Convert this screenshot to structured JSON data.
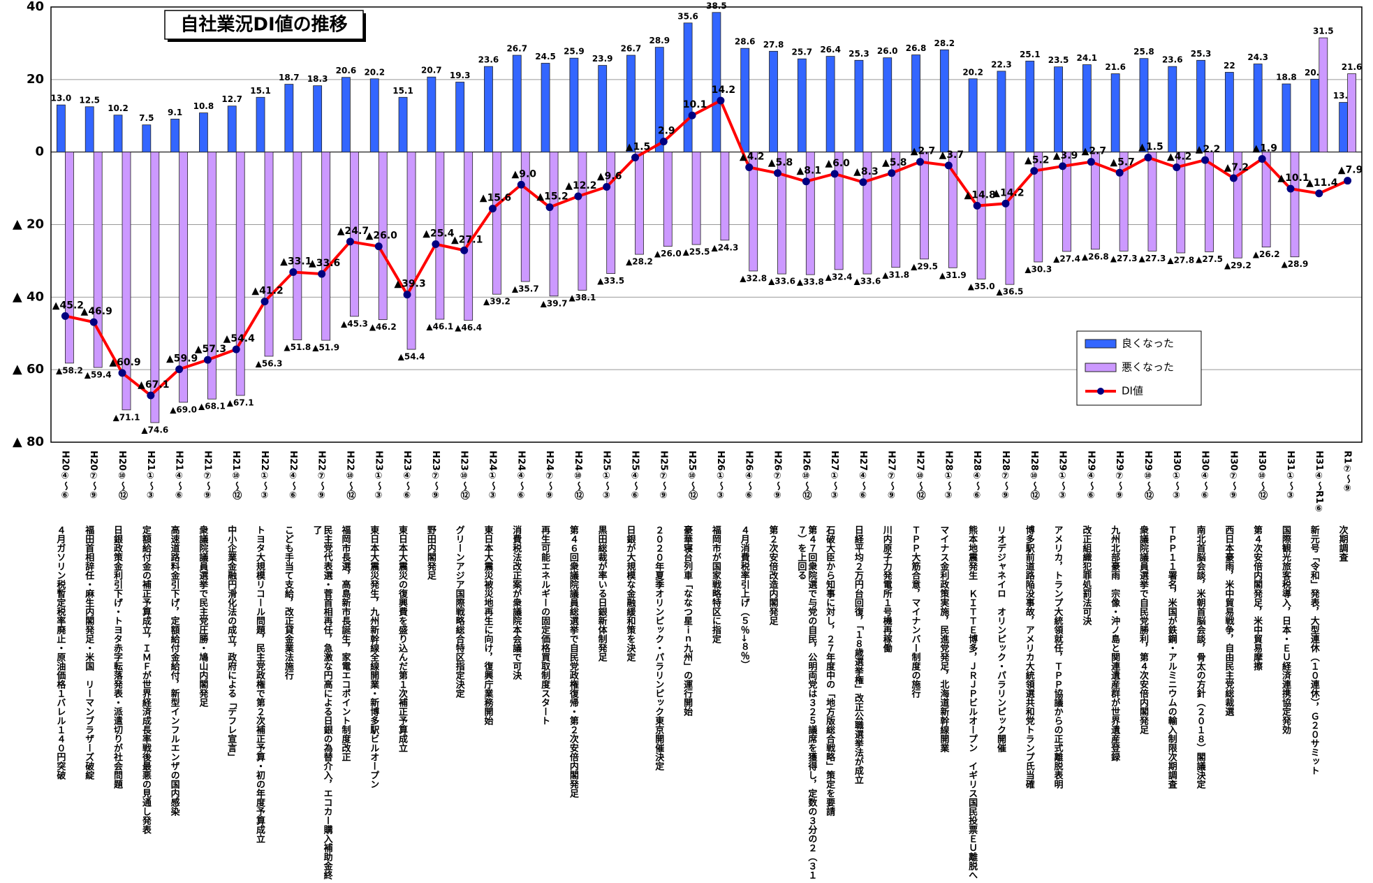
{
  "chart_data": {
    "type": "bar-line",
    "title": "自社業況DI値の推移",
    "categories": [
      "H20④～⑥",
      "H20⑦～⑨",
      "H20⑩～⑫",
      "H21①～③",
      "H21④～⑥",
      "H21⑦～⑨",
      "H21⑩～⑫",
      "H22①～③",
      "H22④～⑥",
      "H22⑦～⑨",
      "H22⑩～⑫",
      "H23①～③",
      "H23④～⑥",
      "H23⑦～⑨",
      "H23⑩～⑫",
      "H24①～③",
      "H24④～⑥",
      "H24⑦～⑨",
      "H24⑩～⑫",
      "H25①～③",
      "H25④～⑥",
      "H25⑦～⑨",
      "H25⑩～⑫",
      "H26①～③",
      "H26④～⑥",
      "H26⑦～⑨",
      "H26⑩～⑫",
      "H27①～③",
      "H27④～⑥",
      "H27⑦～⑨",
      "H27⑩～⑫",
      "H28①～③",
      "H28④～⑥",
      "H28⑦～⑨",
      "H28⑩～⑫",
      "H29①～③",
      "H29④～⑥",
      "H29⑦～⑨",
      "H29⑩～⑫",
      "H30①～③",
      "H30④～⑥",
      "H30⑦～⑨",
      "H30⑩～⑫",
      "H31①～③",
      "H31④～R1⑥",
      "R1⑦～⑨"
    ],
    "events": [
      "４月ガソリン税暫定税率廃止・原油価格１バレル１４０円突破",
      "福田首相辞任・麻生内閣発足・米国　リーマンブラザーズ破綻",
      "日銀政策金利引下げ・トヨタ赤字転落発表・派遣切りが社会問題",
      "定額給付金の補正予算成立，ＩＭＦが世界経済成長率戦後最悪の見通し発表",
      "高速道路料金引下げ，定額給付金給付，新型インフルエンザの国内感染",
      "衆議院議員選挙で民主党圧勝・鳩山内閣発足",
      "中小企業金融円滑化法の成立，政府による「デフレ宣言」",
      "トヨタ大規模リコール問題，民主党政権で第２次補正予算・初の年度予算成立",
      "こども手当て支給，改正貸金業法施行",
      "民主党代表選・菅首相再任，急激な円高による日銀の為替介入，エコカー購入補助金終了",
      "福岡市長選，高島新市長誕生，家電エコポイント制度改正",
      "東日本大震災発生，九州新幹線全線開業・新博多駅ビルオープン",
      "東日本大震災の復興費を盛り込んだ第１次補正予算成立",
      "野田内閣発足",
      "グリーンアジア国際戦略総合特区指定決定",
      "東日本大震災被災地再生に向け，復興庁業務開始",
      "消費税法改正案が衆議院本会議で可決",
      "再生可能エネルギーの固定価格買取制度スタート",
      "第４６回衆議院議員総選挙で自民党政権復帰・第２次安倍内閣発足",
      "黒田総裁が率いる日銀新体制発足",
      "日銀が大規模な金融緩和策を決定",
      "２０２０年夏季オリンピック・パラリンピック東京開催決定",
      "豪華寝台列車「ななつ星ｉｎ九州」の運行開始",
      "福岡市が国家戦略特区に指定",
      "４月消費税率引上げ（５％→８％）",
      "第２次安倍改造内閣発足",
      "第４７回衆院選で与党の自民，公明両党は３２５議席を獲得し，定数の３分の２（３１７）を上回る",
      "石破大臣から知事に対し，２７年度中の「地方版総合戦略」策定を要請",
      "日経平均２万円台回復，「１８歳選挙権」改正公職選挙法が成立",
      "川内原子力発電所１号機再稼働",
      "ＴＰＰ大筋合意，マイナンバー制度の施行",
      "マイナス金利政策実施，民進党発足，北海道新幹線開業",
      "熊本地震発生　ＫＩＴＴＥ博多，ＪＲＪＰビルオープン　イギリス国民投票ＥＵ離脱へ",
      "リオデジャネイロ　オリンピック・パラリンピック開催",
      "博多駅前道路陥没事故，アメリカ大統領選共和党トランプ氏当確",
      "アメリカ，トランプ大統領就任，ＴＰＰ協議からの正式離脱表明",
      "改正組織犯罪処罰法可決",
      "九州北部豪雨　宗像・沖ノ島と関連遺産群が世界遺産登録",
      "衆議院議員選挙で自民党勝利，第４次安倍内閣発足",
      "ＴＰＰ１１署名，米国が鉄鋼・アルミニウムの輸入制限次期調査",
      "南北首脳会談，米朝首脳会談，骨太の方針（２０１８）閣議決定",
      "西日本豪雨，米中貿易戦争，自由民主党総裁選",
      "第４次安倍内閣発足，米中貿易摩擦",
      "国際観光旅客税導入，日本・ＥＵ経済連携協定発効",
      "新元号「令和」発表，大型連休（１０連休），Ｇ２０サミット",
      "次期調査"
    ],
    "series": [
      {
        "name": "良くなった",
        "type": "bar",
        "color": "#3366ff",
        "values": [
          13.0,
          12.5,
          10.2,
          7.5,
          9.1,
          10.8,
          12.7,
          15.1,
          18.7,
          18.3,
          20.6,
          20.2,
          15.1,
          20.7,
          19.3,
          23.6,
          26.7,
          24.5,
          25.9,
          23.9,
          26.7,
          28.9,
          35.6,
          38.5,
          28.6,
          27.8,
          25.7,
          26.4,
          25.3,
          26.0,
          26.8,
          28.2,
          20.2,
          22.3,
          25.1,
          23.5,
          24.1,
          21.6,
          25.8,
          23.6,
          25.3,
          22,
          24.3,
          18.8,
          20.1,
          13.7
        ],
        "value_labels": [
          "13.0",
          "12.5",
          "10.2",
          "7.5",
          "9.1",
          "10.8",
          "12.7",
          "15.1",
          "18.7",
          "18.3",
          "20.6",
          "20.2",
          "15.1",
          "20.7",
          "19.3",
          "23.6",
          "26.7",
          "24.5",
          "25.9",
          "23.9",
          "26.7",
          "28.9",
          "35.6",
          "38.5",
          "28.6",
          "27.8",
          "25.7",
          "26.4",
          "25.3",
          "26.0",
          "26.8",
          "28.2",
          "20.2",
          "22.3",
          "25.1",
          "23.5",
          "24.1",
          "21.6",
          "25.8",
          "23.6",
          "25.3",
          "22",
          "24.3",
          "18.8",
          "20.1",
          "13.7"
        ]
      },
      {
        "name": "悪くなった",
        "type": "bar",
        "color": "#cc99ff",
        "values": [
          -58.2,
          -59.4,
          -71.1,
          -74.6,
          -69.0,
          -68.1,
          -67.1,
          -56.3,
          -51.8,
          -51.9,
          -45.3,
          -46.2,
          -54.4,
          -46.1,
          -46.4,
          -39.2,
          -35.7,
          -39.7,
          -38.1,
          -33.5,
          -28.2,
          -26.0,
          -25.5,
          -24.3,
          -32.8,
          -33.6,
          -33.8,
          -32.4,
          -33.6,
          -31.8,
          -29.5,
          -31.9,
          -35.0,
          -36.5,
          -30.3,
          -27.4,
          -26.8,
          -27.3,
          -27.3,
          -27.8,
          -27.5,
          -29.2,
          -26.2,
          -28.9,
          31.5,
          21.6
        ],
        "value_labels": [
          "▲58.2",
          "▲59.4",
          "▲71.1",
          "▲74.6",
          "▲69.0",
          "▲68.1",
          "▲67.1",
          "▲56.3",
          "▲51.8",
          "▲51.9",
          "▲45.3",
          "▲46.2",
          "▲54.4",
          "▲46.1",
          "▲46.4",
          "▲39.2",
          "▲35.7",
          "▲39.7",
          "▲38.1",
          "▲33.5",
          "▲28.2",
          "▲26.0",
          "▲25.5",
          "▲24.3",
          "▲32.8",
          "▲33.6",
          "▲33.8",
          "▲32.4",
          "▲33.6",
          "▲31.8",
          "▲29.5",
          "▲31.9",
          "▲35.0",
          "▲36.5",
          "▲30.3",
          "▲27.4",
          "▲26.8",
          "▲27.3",
          "▲27.3",
          "▲27.8",
          "▲27.5",
          "▲29.2",
          "▲26.2",
          "▲28.9",
          "31.5",
          "21.6"
        ]
      },
      {
        "name": "DI値",
        "type": "line",
        "color": "#ff0000",
        "marker_color": "#000080",
        "values": [
          -45.2,
          -46.9,
          -60.9,
          -67.1,
          -59.9,
          -57.3,
          -54.4,
          -41.2,
          -33.1,
          -33.6,
          -24.7,
          -26.0,
          -39.3,
          -25.4,
          -27.1,
          -15.6,
          -9.0,
          -15.2,
          -12.2,
          -9.6,
          -1.5,
          2.9,
          10.1,
          14.2,
          -4.2,
          -5.8,
          -8.1,
          -6.0,
          -8.3,
          -5.8,
          -2.7,
          -3.7,
          -14.8,
          -14.2,
          -5.2,
          -3.9,
          -2.7,
          -5.7,
          -1.5,
          -4.2,
          -2.2,
          -7.2,
          -1.9,
          -10.1,
          -11.4,
          -7.9
        ],
        "value_labels": [
          "▲45.2",
          "▲46.9",
          "▲60.9",
          "▲67.1",
          "▲59.9",
          "▲57.3",
          "▲54.4",
          "▲41.2",
          "▲33.1",
          "▲33.6",
          "▲24.7",
          "▲26.0",
          "▲39.3",
          "▲25.4",
          "▲27.1",
          "▲15.6",
          "▲9.0",
          "▲15.2",
          "▲12.2",
          "▲9.6",
          "▲1.5",
          "2.9",
          "10.1",
          "14.2",
          "▲4.2",
          "▲5.8",
          "▲8.1",
          "▲6.0",
          "▲8.3",
          "▲5.8",
          "▲2.7",
          "▲3.7",
          "▲14.8",
          "▲14.2",
          "▲5.2",
          "▲3.9",
          "▲2.7",
          "▲5.7",
          "▲1.5",
          "▲4.2",
          "▲2.2",
          "▲7.2",
          "▲1.9",
          "▲10.1",
          "▲11.4",
          "▲7.9"
        ]
      }
    ],
    "ylim": [
      -80,
      40
    ],
    "yticks": [
      40,
      20,
      0,
      {
        "value": -20,
        "label": "▲ 20"
      },
      {
        "value": -40,
        "label": "▲ 40"
      },
      {
        "value": -60,
        "label": "▲ 60"
      },
      {
        "value": -80,
        "label": "▲ 80"
      }
    ],
    "grid": true,
    "legend": "right"
  }
}
